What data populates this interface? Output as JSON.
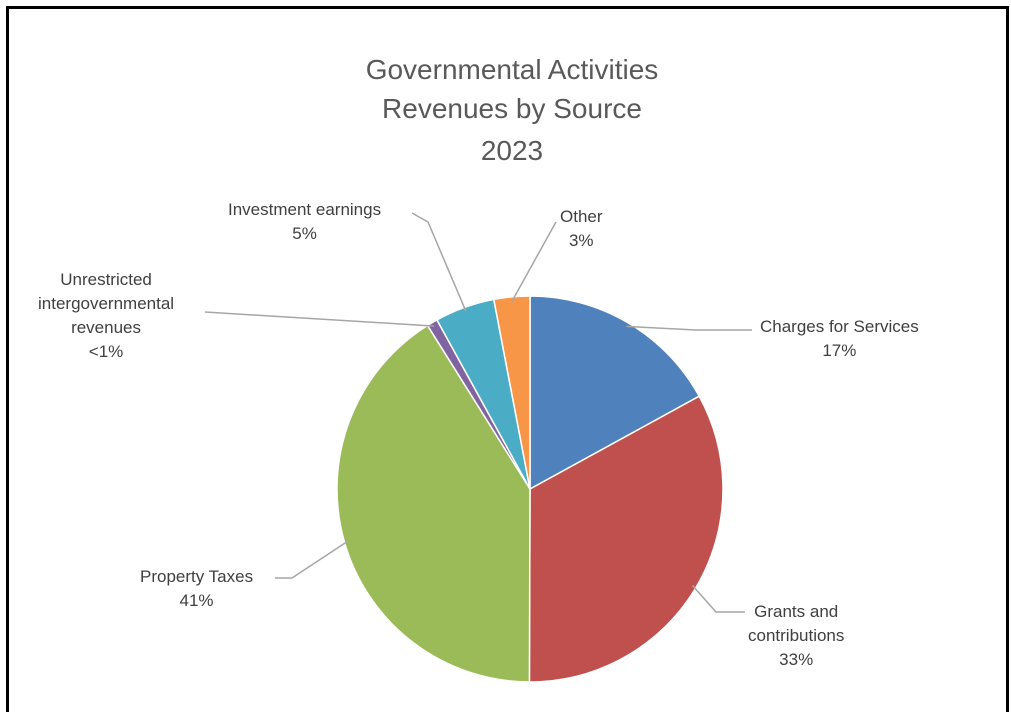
{
  "chart_data": {
    "type": "pie",
    "title_lines": [
      "Governmental Activities",
      "Revenues by Source",
      "2023"
    ],
    "slices": [
      {
        "name": "Charges for Services",
        "label_lines": [
          "Charges for Services"
        ],
        "pct_label": "17%",
        "value": 17,
        "color": "#4F81BD"
      },
      {
        "name": "Grants and contributions",
        "label_lines": [
          "Grants and",
          "contributions"
        ],
        "pct_label": "33%",
        "value": 33,
        "color": "#C0504D"
      },
      {
        "name": "Property Taxes",
        "label_lines": [
          "Property Taxes"
        ],
        "pct_label": "41%",
        "value": 41,
        "color": "#9BBB59"
      },
      {
        "name": "Unrestricted intergovernmental revenues",
        "label_lines": [
          "Unrestricted",
          "intergovernmental",
          "revenues"
        ],
        "pct_label": "<1%",
        "value": 0.9,
        "color": "#8064A2"
      },
      {
        "name": "Investment earnings",
        "label_lines": [
          "Investment earnings"
        ],
        "pct_label": "5%",
        "value": 5,
        "color": "#4BACC6"
      },
      {
        "name": "Other",
        "label_lines": [
          "Other"
        ],
        "pct_label": "3%",
        "value": 3,
        "color": "#F79646"
      }
    ]
  }
}
